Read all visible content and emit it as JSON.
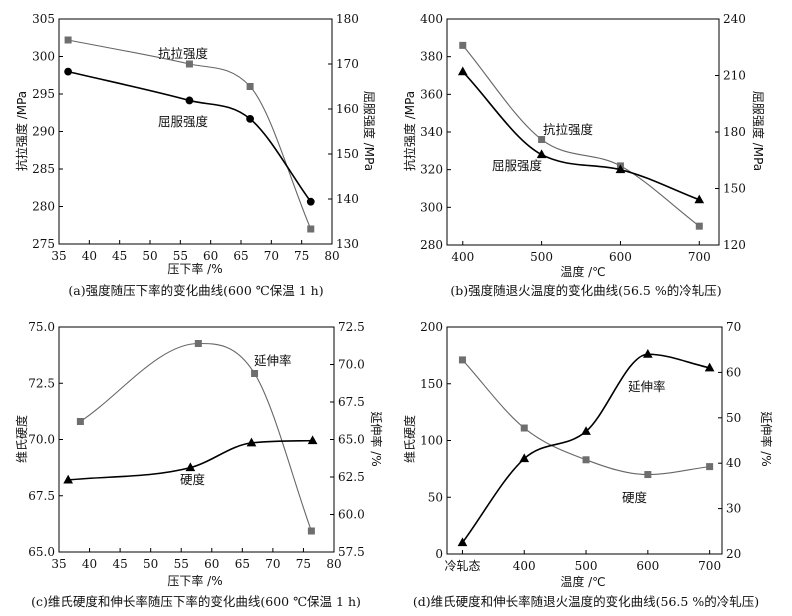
{
  "colors": {
    "dark_series": "#000000",
    "gray_series": "#666666",
    "background": "#ffffff"
  },
  "chart_data": [
    {
      "id": "a",
      "type": "line",
      "caption": "(a)强度随压下率的变化曲线(600 ℃保温 1 h)",
      "xlabel": "压下率 /%",
      "ylabel_left": "抗拉强度 /MPa",
      "ylabel_right": "屈服强度 /MPa",
      "x_ticks": [
        "35",
        "40",
        "45",
        "50",
        "55",
        "60",
        "65",
        "70",
        "75",
        "80"
      ],
      "y_left_ticks": [
        "275",
        "280",
        "285",
        "290",
        "295",
        "300",
        "305"
      ],
      "y_right_ticks": [
        "130",
        "140",
        "150",
        "160",
        "170",
        "180"
      ],
      "xlim": [
        35,
        80
      ],
      "ylim_left": [
        275,
        305
      ],
      "ylim_right": [
        130,
        180
      ],
      "series": [
        {
          "name": "抗拉强度",
          "axis": "left",
          "style": "gray",
          "marker": "square",
          "x": [
            36.5,
            56.5,
            66.5,
            76.5
          ],
          "y": [
            302.2,
            299.0,
            296.0,
            277.0
          ]
        },
        {
          "name": "屈服强度",
          "axis": "right",
          "style": "dark",
          "marker": "circle",
          "x": [
            36.5,
            56.5,
            66.5,
            76.5
          ],
          "y": [
            168.3,
            161.9,
            157.8,
            139.4
          ]
        }
      ]
    },
    {
      "id": "b",
      "type": "line",
      "caption": "(b)强度随退火温度的变化曲线(56.5 %的冷轧压)",
      "xlabel": "温度 /℃",
      "ylabel_left": "抗拉强度 /MPa",
      "ylabel_right": "屈服强度 /MPa",
      "x_ticks": [
        "400",
        "500",
        "600",
        "700"
      ],
      "y_left_ticks": [
        "280",
        "300",
        "320",
        "340",
        "360",
        "380",
        "400"
      ],
      "y_right_ticks": [
        "120",
        "150",
        "180",
        "210",
        "240"
      ],
      "xlim": [
        380,
        725
      ],
      "ylim_left": [
        280,
        400
      ],
      "ylim_right": [
        120,
        240
      ],
      "series": [
        {
          "name": "抗拉强度",
          "axis": "left",
          "style": "gray",
          "marker": "square",
          "x": [
            400,
            500,
            600,
            700
          ],
          "y": [
            386.0,
            336.0,
            322.0,
            290.0
          ]
        },
        {
          "name": "屈服强度",
          "axis": "right",
          "style": "dark",
          "marker": "triangle",
          "x": [
            400,
            500,
            600,
            700
          ],
          "y": [
            212.0,
            168.0,
            160.0,
            144.0
          ]
        }
      ]
    },
    {
      "id": "c",
      "type": "line",
      "caption": "(c)维氏硬度和伸长率随压下率的变化曲线(600 ℃保温 1 h)",
      "xlabel": "压下率 /%",
      "ylabel_left": "维氏硬度",
      "ylabel_right": "延伸率 /%",
      "x_ticks": [
        "35",
        "40",
        "45",
        "50",
        "55",
        "60",
        "65",
        "70",
        "75",
        "80"
      ],
      "y_left_ticks": [
        "65.0",
        "67.5",
        "70.0",
        "72.5",
        "75.0"
      ],
      "y_right_ticks": [
        "57.5",
        "60.0",
        "62.5",
        "65.0",
        "67.5",
        "70.0",
        "72.5"
      ],
      "xlim": [
        35,
        80
      ],
      "ylim_left": [
        65,
        75
      ],
      "ylim_right": [
        57.5,
        72.5
      ],
      "series": [
        {
          "name": "延伸率",
          "axis": "right",
          "style": "gray",
          "marker": "square",
          "x": [
            38.5,
            57.8,
            67.0,
            76.3
          ],
          "y": [
            66.2,
            71.4,
            69.4,
            58.9
          ]
        },
        {
          "name": "硬度",
          "axis": "left",
          "style": "dark",
          "marker": "triangle",
          "x": [
            36.5,
            56.5,
            66.5,
            76.5
          ],
          "y": [
            68.2,
            68.75,
            69.85,
            69.95
          ]
        }
      ]
    },
    {
      "id": "d",
      "type": "line",
      "caption": "(d)维氏硬度和伸长率随退火温度的变化曲线(56.5 %的冷轧压)",
      "xlabel": "温度 /℃",
      "ylabel_left": "维氏硬度",
      "ylabel_right": "延伸率 /%",
      "x_ticks": [
        "冷轧态",
        "400",
        "500",
        "600",
        "700"
      ],
      "x_tick_values": [
        300,
        400,
        500,
        600,
        700
      ],
      "y_left_ticks": [
        "0",
        "50",
        "100",
        "150",
        "200"
      ],
      "y_right_ticks": [
        "20",
        "30",
        "40",
        "50",
        "60",
        "70"
      ],
      "xlim": [
        275,
        720
      ],
      "ylim_left": [
        0,
        200
      ],
      "ylim_right": [
        20,
        70
      ],
      "series": [
        {
          "name": "硬度",
          "axis": "left",
          "style": "gray",
          "marker": "square",
          "x": [
            300,
            400,
            500,
            600,
            700
          ],
          "y": [
            171,
            111,
            83,
            70,
            77
          ]
        },
        {
          "name": "延伸率",
          "axis": "right",
          "style": "dark",
          "marker": "triangle",
          "x": [
            300,
            400,
            500,
            600,
            700
          ],
          "y": [
            22.5,
            41.0,
            47.0,
            64.0,
            61.0
          ]
        }
      ]
    }
  ]
}
